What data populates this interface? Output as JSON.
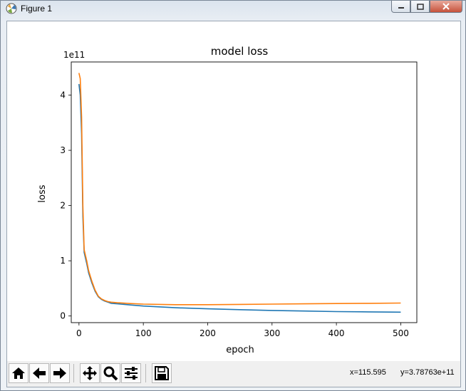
{
  "window": {
    "title": "Figure 1"
  },
  "toolbar": {
    "buttons": [
      {
        "name": "home-icon"
      },
      {
        "name": "back-arrow-icon"
      },
      {
        "name": "forward-arrow-icon"
      },
      {
        "name": "pan-icon"
      },
      {
        "name": "zoom-icon"
      },
      {
        "name": "configure-subplots-icon"
      },
      {
        "name": "save-icon"
      }
    ],
    "x_readout": "x=115.595",
    "y_readout": "y=3.78763e+11"
  },
  "chart_data": {
    "type": "line",
    "title": "model loss",
    "xlabel": "epoch",
    "ylabel": "loss",
    "offset_label": "1e11",
    "xlim": [
      -12,
      525
    ],
    "ylim": [
      -0.12,
      4.6
    ],
    "xticks": [
      0,
      100,
      200,
      300,
      400,
      500
    ],
    "yticks": [
      0,
      1,
      2,
      3,
      4
    ],
    "grid": false,
    "series": [
      {
        "color": "#1f77b4",
        "x": [
          0,
          2,
          4,
          6,
          8,
          10,
          12,
          15,
          20,
          25,
          30,
          35,
          40,
          45,
          50,
          60,
          80,
          100,
          150,
          200,
          250,
          300,
          350,
          400,
          450,
          500
        ],
        "values": [
          4.2,
          4.0,
          3.3,
          1.8,
          1.15,
          1.05,
          0.95,
          0.78,
          0.6,
          0.45,
          0.35,
          0.3,
          0.27,
          0.25,
          0.23,
          0.22,
          0.2,
          0.18,
          0.15,
          0.13,
          0.115,
          0.1,
          0.09,
          0.08,
          0.075,
          0.07
        ]
      },
      {
        "color": "#ff7f0e",
        "x": [
          0,
          2,
          4,
          6,
          8,
          10,
          12,
          15,
          20,
          25,
          30,
          35,
          40,
          45,
          50,
          60,
          80,
          100,
          150,
          200,
          250,
          300,
          350,
          400,
          450,
          500
        ],
        "values": [
          4.4,
          4.3,
          3.6,
          2.0,
          1.2,
          1.1,
          1.0,
          0.82,
          0.63,
          0.47,
          0.36,
          0.31,
          0.28,
          0.26,
          0.25,
          0.24,
          0.225,
          0.215,
          0.205,
          0.205,
          0.21,
          0.215,
          0.22,
          0.225,
          0.23,
          0.235
        ]
      }
    ]
  }
}
